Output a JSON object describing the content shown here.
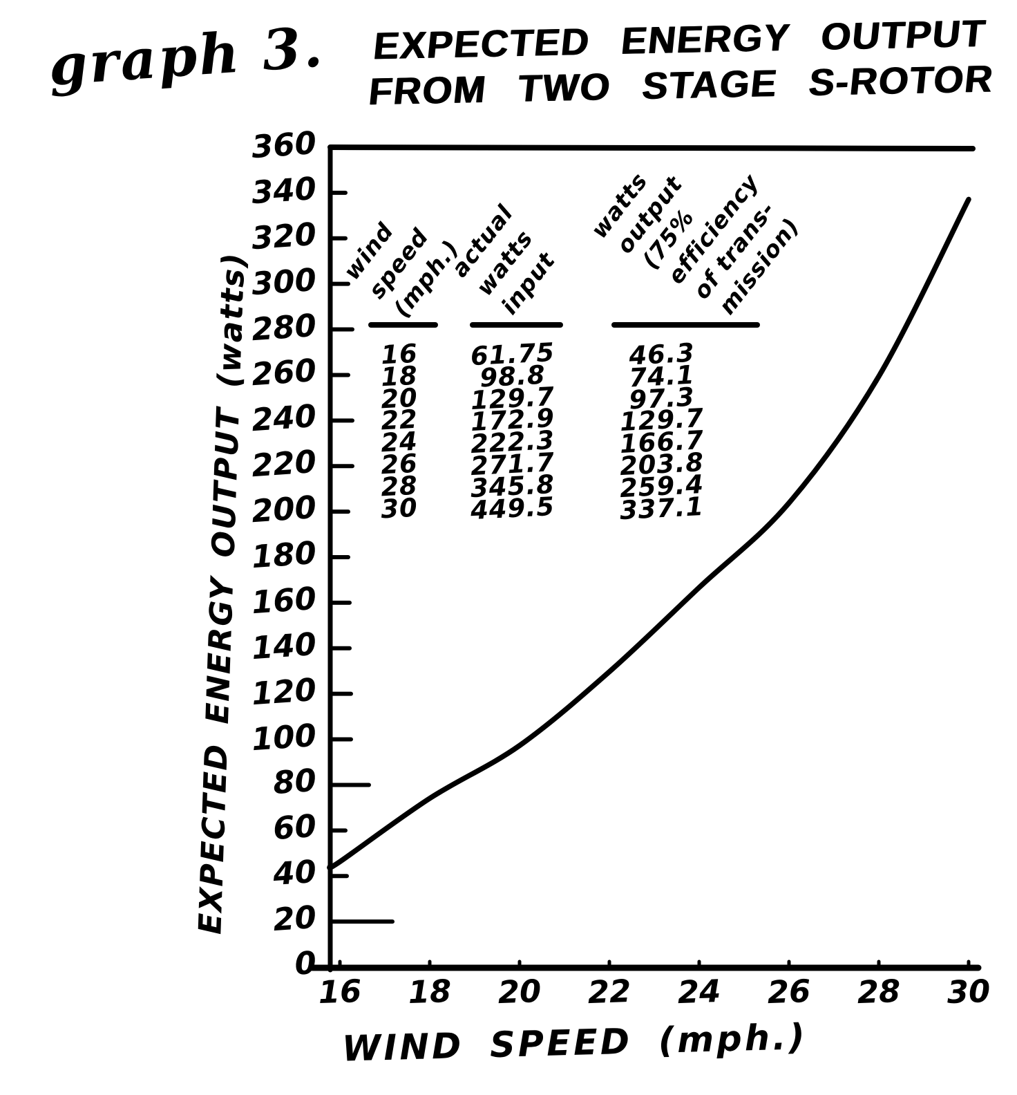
{
  "figure_label": "graph 3.",
  "title": {
    "line1": "EXPECTED ENERGY OUTPUT",
    "line2": "FROM TWO STAGE S-ROTOR"
  },
  "chart_data": {
    "type": "line",
    "title": "EXPECTED ENERGY OUTPUT FROM TWO STAGE S-ROTOR",
    "xlabel": "WIND SPEED (mph.)",
    "ylabel": "EXPECTED ENERGY OUTPUT (watts)",
    "series_name": "watts output (75% efficiency of transmission)",
    "x": [
      16,
      18,
      20,
      22,
      24,
      26,
      28,
      30
    ],
    "y": [
      46.3,
      74.1,
      97.3,
      129.7,
      166.7,
      203.8,
      259.4,
      337.1
    ],
    "xlim": [
      16,
      30
    ],
    "ylim": [
      0,
      360
    ],
    "x_ticks": [
      16,
      18,
      20,
      22,
      24,
      26,
      28,
      30
    ],
    "y_ticks": [
      0,
      20,
      40,
      60,
      80,
      100,
      120,
      140,
      160,
      180,
      200,
      220,
      240,
      260,
      280,
      300,
      320,
      340,
      360
    ],
    "grid": false,
    "legend": false,
    "line_color": "#000000"
  },
  "inset_table": {
    "columns": [
      {
        "header_lines": [
          "wind",
          "speed",
          "(mph.)"
        ]
      },
      {
        "header_lines": [
          "actual",
          "watts",
          "input"
        ]
      },
      {
        "header_lines": [
          "watts",
          "output",
          "(75%",
          "efficiency",
          "of trans-",
          "mission)"
        ]
      }
    ],
    "rows": [
      [
        "16",
        "61.75",
        "46.3"
      ],
      [
        "18",
        "98.8",
        "74.1"
      ],
      [
        "20",
        "129.7",
        "97.3"
      ],
      [
        "22",
        "172.9",
        "129.7"
      ],
      [
        "24",
        "222.3",
        "166.7"
      ],
      [
        "26",
        "271.7",
        "203.8"
      ],
      [
        "28",
        "345.8",
        "259.4"
      ],
      [
        "30",
        "449.5",
        "337.1"
      ]
    ]
  },
  "colors": {
    "ink": "#000000",
    "paper": "#ffffff"
  }
}
